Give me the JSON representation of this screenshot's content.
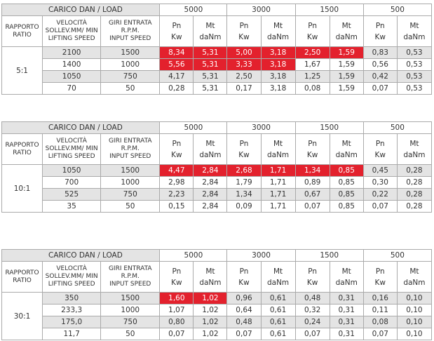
{
  "tables": [
    {
      "load_label": "CARICO DAN / LOAD",
      "loads": [
        "5000",
        "3000",
        "1500",
        "500"
      ],
      "ratio_header": [
        "RAPPORTO",
        "RATIO"
      ],
      "speed_header": [
        "VELOCITÀ",
        "SOLLEV.MM/ MIN",
        "LIFTING SPEED"
      ],
      "rpm_header": [
        "GIRI ENTRATA",
        "R.P.M.",
        "INPUT SPEED"
      ],
      "pn_header": [
        "Pn",
        "Kw"
      ],
      "mt_header": [
        "Mt",
        "daNm"
      ],
      "ratio": "5:1",
      "rows": [
        {
          "cells": [
            "2100",
            "1500",
            "8,34",
            "5,31",
            "5,00",
            "3,18",
            "2,50",
            "1,59",
            "0,83",
            "0,53"
          ],
          "red_cells": 6
        },
        {
          "cells": [
            "1400",
            "1000",
            "5,56",
            "5,31",
            "3,33",
            "3,18",
            "1,67",
            "1,59",
            "0,56",
            "0,53"
          ],
          "red_cells": 4
        },
        {
          "cells": [
            "1050",
            "750",
            "4,17",
            "5,31",
            "2,50",
            "3,18",
            "1,25",
            "1,59",
            "0,42",
            "0,53"
          ],
          "red_cells": 0
        },
        {
          "cells": [
            "70",
            "50",
            "0,28",
            "5,31",
            "0,17",
            "3,18",
            "0,08",
            "1,59",
            "0,07",
            "0,53"
          ],
          "red_cells": 0
        }
      ]
    },
    {
      "load_label": "CARICO DAN / LOAD",
      "loads": [
        "5000",
        "3000",
        "1500",
        "500"
      ],
      "ratio_header": [
        "RAPPORTO",
        "RATIO"
      ],
      "speed_header": [
        "VELOCITÀ",
        "SOLLEV.MM/ MIN",
        "LIFTING SPEED"
      ],
      "rpm_header": [
        "GIRI ENTRATA",
        "R.P.M.",
        "INPUT SPEED"
      ],
      "pn_header": [
        "Pn",
        "Kw"
      ],
      "mt_header": [
        "Mt",
        "daNm"
      ],
      "ratio": "10:1",
      "rows": [
        {
          "cells": [
            "1050",
            "1500",
            "4,47",
            "2,84",
            "2,68",
            "1,71",
            "1,34",
            "0,85",
            "0,45",
            "0,28"
          ],
          "red_cells": 6
        },
        {
          "cells": [
            "700",
            "1000",
            "2,98",
            "2,84",
            "1,79",
            "1,71",
            "0,89",
            "0,85",
            "0,30",
            "0,28"
          ],
          "red_cells": 0
        },
        {
          "cells": [
            "525",
            "750",
            "2,23",
            "2,84",
            "1,34",
            "1,71",
            "0,67",
            "0,85",
            "0,22",
            "0,28"
          ],
          "red_cells": 0
        },
        {
          "cells": [
            "35",
            "50",
            "0,15",
            "2,84",
            "0,09",
            "1,71",
            "0,07",
            "0,85",
            "0,07",
            "0,28"
          ],
          "red_cells": 0
        }
      ]
    },
    {
      "load_label": "CARICO DAN / LOAD",
      "loads": [
        "5000",
        "3000",
        "1500",
        "500"
      ],
      "ratio_header": [
        "RAPPORTO",
        "RATIO"
      ],
      "speed_header": [
        "VELOCITÀ",
        "SOLLEV.MM/ MIN",
        "LIFTING SPEED"
      ],
      "rpm_header": [
        "GIRI ENTRATA",
        "R.P.M.",
        "INPUT SPEED"
      ],
      "pn_header": [
        "Pn",
        "Kw"
      ],
      "mt_header": [
        "Mt",
        "daNm"
      ],
      "ratio": "30:1",
      "rows": [
        {
          "cells": [
            "350",
            "1500",
            "1,60",
            "1,02",
            "0,96",
            "0,61",
            "0,48",
            "0,31",
            "0,16",
            "0,10"
          ],
          "red_cells": 2
        },
        {
          "cells": [
            "233,3",
            "1000",
            "1,07",
            "1,02",
            "0,64",
            "0,61",
            "0,32",
            "0,31",
            "0,11",
            "0,10"
          ],
          "red_cells": 0
        },
        {
          "cells": [
            "175,0",
            "750",
            "0,80",
            "1,02",
            "0,48",
            "0,61",
            "0,24",
            "0,31",
            "0,08",
            "0,10"
          ],
          "red_cells": 0
        },
        {
          "cells": [
            "11,7",
            "50",
            "0,07",
            "1,02",
            "0,07",
            "0,61",
            "0,07",
            "0,31",
            "0,07",
            "0,10"
          ],
          "red_cells": 0
        }
      ]
    }
  ]
}
